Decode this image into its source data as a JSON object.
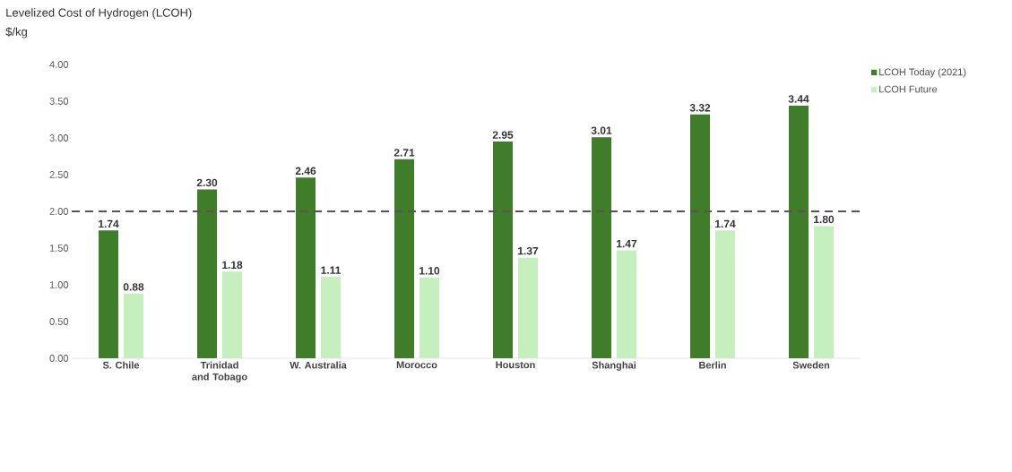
{
  "chart_data": {
    "type": "bar",
    "title": "Levelized Cost of Hydrogen (LCOH)",
    "subtitle": "$/kg",
    "categories": [
      "S. Chile",
      "Trinidad and Tobago",
      "W. Australia",
      "Morocco",
      "Houston",
      "Shanghai",
      "Berlin",
      "Sweden"
    ],
    "series": [
      {
        "name": "LCOH Today (2021)",
        "color": "#3f7d2a",
        "values": [
          1.74,
          2.3,
          2.46,
          2.71,
          2.95,
          3.01,
          3.32,
          3.44
        ],
        "value_labels": [
          "1.74",
          "2.30",
          "2.46",
          "2.71",
          "2.95",
          "3.01",
          "3.32",
          "3.44"
        ]
      },
      {
        "name": "LCOH Future",
        "color": "#c6efbe",
        "values": [
          0.88,
          1.18,
          1.11,
          1.1,
          1.37,
          1.47,
          1.74,
          1.8
        ],
        "value_labels": [
          "0.88",
          "1.18",
          "1.11",
          "1.10",
          "1.37",
          "1.47",
          "1.74",
          "1.80"
        ]
      }
    ],
    "ylim": [
      0,
      4
    ],
    "yticks": [
      {
        "value": 0,
        "label": "0.00"
      },
      {
        "value": 0.5,
        "label": "0.50"
      },
      {
        "value": 1,
        "label": "1.00"
      },
      {
        "value": 1.5,
        "label": "1.50"
      },
      {
        "value": 2,
        "label": "2.00"
      },
      {
        "value": 2.5,
        "label": "2.50"
      },
      {
        "value": 3,
        "label": "3.00"
      },
      {
        "value": 3.5,
        "label": "3.50"
      },
      {
        "value": 4,
        "label": "4.00"
      }
    ],
    "ref_lines": [
      {
        "axis": "y",
        "value": 2,
        "color": "#555555",
        "line_style": "dashed"
      }
    ],
    "grid": false,
    "legend": "top right"
  }
}
